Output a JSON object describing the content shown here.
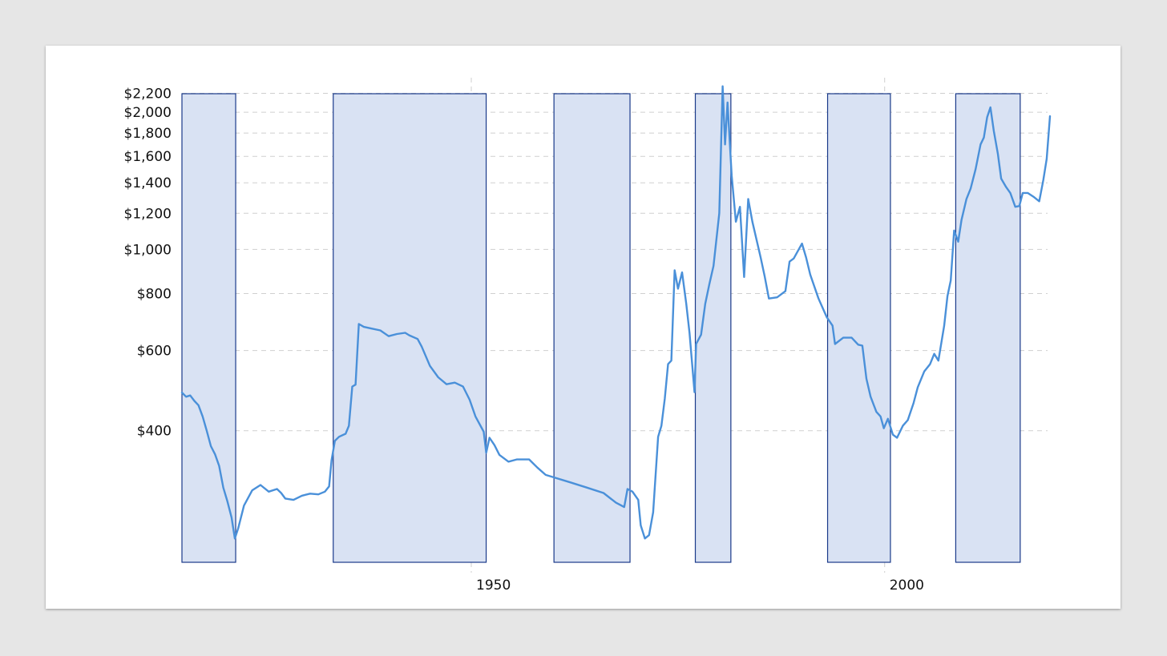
{
  "chart_data": {
    "type": "line",
    "title": "",
    "xlabel": "",
    "ylabel": "",
    "y_scale": "log",
    "xlim": [
      1915,
      2020
    ],
    "ylim": [
      200,
      2250
    ],
    "y_ticks": [
      {
        "value": 2200,
        "label": "$2,200"
      },
      {
        "value": 2000,
        "label": "$2,000"
      },
      {
        "value": 1800,
        "label": "$1,800"
      },
      {
        "value": 1600,
        "label": "$1,600"
      },
      {
        "value": 1400,
        "label": "$1,400"
      },
      {
        "value": 1200,
        "label": "$1,200"
      },
      {
        "value": 1000,
        "label": "$1,000"
      },
      {
        "value": 800,
        "label": "$800"
      },
      {
        "value": 600,
        "label": "$600"
      },
      {
        "value": 400,
        "label": "$400"
      }
    ],
    "x_ticks": [
      {
        "value": 1950,
        "label": "1950"
      },
      {
        "value": 2000,
        "label": "2000"
      }
    ],
    "grid": true,
    "legend": "none",
    "colors": {
      "line": "#4a90d9",
      "band_fill": "#d9e2f3",
      "band_stroke": "#1a3a8a"
    },
    "shaded_periods": [
      {
        "start": 1915.0,
        "end": 1921.5
      },
      {
        "start": 1933.3,
        "end": 1951.8
      },
      {
        "start": 1960.0,
        "end": 1969.2
      },
      {
        "start": 1977.1,
        "end": 1981.4
      },
      {
        "start": 1993.1,
        "end": 2000.7
      },
      {
        "start": 2008.6,
        "end": 2016.4
      }
    ],
    "series": [
      {
        "points": [
          [
            1915.0,
            485
          ],
          [
            1915.5,
            475
          ],
          [
            1916.0,
            478
          ],
          [
            1916.5,
            465
          ],
          [
            1917.0,
            455
          ],
          [
            1917.5,
            430
          ],
          [
            1918.0,
            400
          ],
          [
            1918.5,
            370
          ],
          [
            1919.0,
            355
          ],
          [
            1919.5,
            335
          ],
          [
            1920.0,
            300
          ],
          [
            1920.5,
            280
          ],
          [
            1921.0,
            258
          ],
          [
            1921.4,
            232
          ],
          [
            1921.8,
            244
          ],
          [
            1922.5,
            274
          ],
          [
            1923.5,
            296
          ],
          [
            1924.5,
            304
          ],
          [
            1925.5,
            294
          ],
          [
            1926.5,
            298
          ],
          [
            1927.0,
            292
          ],
          [
            1927.5,
            284
          ],
          [
            1928.5,
            282
          ],
          [
            1929.5,
            288
          ],
          [
            1930.5,
            291
          ],
          [
            1931.5,
            290
          ],
          [
            1932.3,
            294
          ],
          [
            1932.8,
            302
          ],
          [
            1933.1,
            345
          ],
          [
            1933.5,
            380
          ],
          [
            1934.0,
            388
          ],
          [
            1934.8,
            394
          ],
          [
            1935.2,
            410
          ],
          [
            1935.6,
            500
          ],
          [
            1936.0,
            505
          ],
          [
            1936.4,
            686
          ],
          [
            1937.0,
            676
          ],
          [
            1938.0,
            670
          ],
          [
            1939.0,
            664
          ],
          [
            1940.0,
            645
          ],
          [
            1941.0,
            652
          ],
          [
            1942.0,
            656
          ],
          [
            1942.5,
            648
          ],
          [
            1943.5,
            636
          ],
          [
            1944.0,
            612
          ],
          [
            1945.0,
            555
          ],
          [
            1946.0,
            524
          ],
          [
            1947.0,
            506
          ],
          [
            1948.0,
            510
          ],
          [
            1949.0,
            500
          ],
          [
            1949.8,
            468
          ],
          [
            1950.5,
            430
          ],
          [
            1951.5,
            398
          ],
          [
            1951.8,
            358
          ],
          [
            1952.2,
            386
          ],
          [
            1952.8,
            372
          ],
          [
            1953.4,
            354
          ],
          [
            1954.5,
            342
          ],
          [
            1955.5,
            346
          ],
          [
            1957.0,
            346
          ],
          [
            1958.0,
            332
          ],
          [
            1959.0,
            320
          ],
          [
            1960.0,
            316
          ],
          [
            1962.0,
            308
          ],
          [
            1964.0,
            300
          ],
          [
            1966.0,
            292
          ],
          [
            1967.5,
            278
          ],
          [
            1968.5,
            272
          ],
          [
            1968.9,
            298
          ],
          [
            1969.5,
            294
          ],
          [
            1970.2,
            282
          ],
          [
            1970.5,
            248
          ],
          [
            1971.0,
            232
          ],
          [
            1971.5,
            236
          ],
          [
            1972.0,
            265
          ],
          [
            1972.6,
            388
          ],
          [
            1973.0,
            410
          ],
          [
            1973.4,
            470
          ],
          [
            1973.8,
            560
          ],
          [
            1974.2,
            570
          ],
          [
            1974.6,
            900
          ],
          [
            1975.0,
            820
          ],
          [
            1975.5,
            890
          ],
          [
            1976.0,
            760
          ],
          [
            1976.4,
            655
          ],
          [
            1977.0,
            486
          ],
          [
            1977.2,
            620
          ],
          [
            1977.8,
            650
          ],
          [
            1978.3,
            760
          ],
          [
            1978.8,
            840
          ],
          [
            1979.3,
            920
          ],
          [
            1980.0,
            1200
          ],
          [
            1980.4,
            2280
          ],
          [
            1980.7,
            1700
          ],
          [
            1981.0,
            2100
          ],
          [
            1981.5,
            1450
          ],
          [
            1982.0,
            1150
          ],
          [
            1982.5,
            1240
          ],
          [
            1983.0,
            870
          ],
          [
            1983.5,
            1290
          ],
          [
            1984.0,
            1150
          ],
          [
            1985.0,
            960
          ],
          [
            1985.5,
            870
          ],
          [
            1986.0,
            780
          ],
          [
            1987.0,
            785
          ],
          [
            1988.0,
            810
          ],
          [
            1988.5,
            940
          ],
          [
            1989.0,
            955
          ],
          [
            1990.0,
            1030
          ],
          [
            1990.5,
            960
          ],
          [
            1991.0,
            880
          ],
          [
            1992.0,
            780
          ],
          [
            1993.0,
            710
          ],
          [
            1993.7,
            680
          ],
          [
            1994.0,
            620
          ],
          [
            1995.0,
            640
          ],
          [
            1996.0,
            640
          ],
          [
            1996.8,
            618
          ],
          [
            1997.3,
            615
          ],
          [
            1997.8,
            520
          ],
          [
            1998.3,
            475
          ],
          [
            1999.0,
            440
          ],
          [
            1999.5,
            430
          ],
          [
            1999.9,
            405
          ],
          [
            2000.4,
            425
          ],
          [
            2001.0,
            392
          ],
          [
            2001.5,
            386
          ],
          [
            2002.2,
            410
          ],
          [
            2002.8,
            422
          ],
          [
            2003.5,
            460
          ],
          [
            2004.0,
            498
          ],
          [
            2004.8,
            540
          ],
          [
            2005.5,
            560
          ],
          [
            2006.0,
            590
          ],
          [
            2006.5,
            570
          ],
          [
            2007.2,
            680
          ],
          [
            2007.6,
            790
          ],
          [
            2008.0,
            855
          ],
          [
            2008.4,
            1100
          ],
          [
            2008.9,
            1040
          ],
          [
            2009.3,
            1160
          ],
          [
            2009.9,
            1290
          ],
          [
            2010.4,
            1360
          ],
          [
            2011.0,
            1500
          ],
          [
            2011.6,
            1700
          ],
          [
            2012.0,
            1760
          ],
          [
            2012.4,
            1950
          ],
          [
            2012.8,
            2050
          ],
          [
            2013.2,
            1820
          ],
          [
            2013.7,
            1620
          ],
          [
            2014.1,
            1430
          ],
          [
            2014.7,
            1370
          ],
          [
            2015.2,
            1330
          ],
          [
            2015.8,
            1240
          ],
          [
            2016.3,
            1245
          ],
          [
            2016.7,
            1330
          ],
          [
            2017.3,
            1330
          ],
          [
            2018.0,
            1305
          ],
          [
            2018.7,
            1275
          ],
          [
            2019.2,
            1420
          ],
          [
            2019.6,
            1580
          ],
          [
            2020.0,
            1960
          ]
        ]
      }
    ]
  }
}
